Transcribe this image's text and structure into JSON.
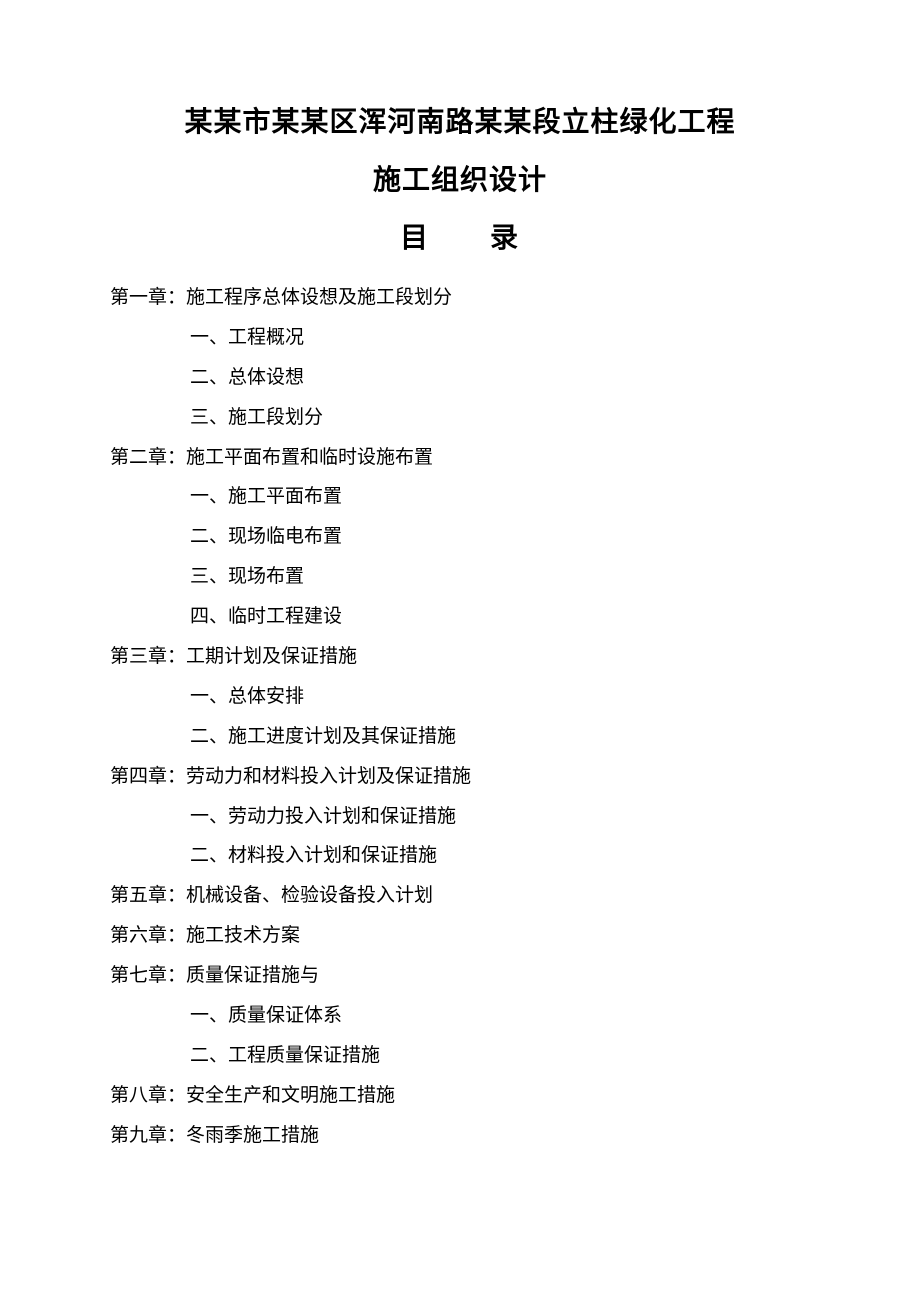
{
  "title_line_1": "某某市某某区浑河南路某某段立柱绿化工程",
  "title_line_2": "施工组织设计",
  "toc_heading": "目　　录",
  "chapters": {
    "ch1": {
      "title": "第一章：施工程序总体设想及施工段划分",
      "sub1": "一、工程概况",
      "sub2": "二、总体设想",
      "sub3": "三、施工段划分"
    },
    "ch2": {
      "title": "第二章：施工平面布置和临时设施布置",
      "sub1": "一、施工平面布置",
      "sub2": "二、现场临电布置",
      "sub3": "三、现场布置",
      "sub4": "四、临时工程建设"
    },
    "ch3": {
      "title": "第三章：工期计划及保证措施",
      "sub1": "一、总体安排",
      "sub2": "二、施工进度计划及其保证措施"
    },
    "ch4": {
      "title": "第四章：劳动力和材料投入计划及保证措施",
      "sub1": "一、劳动力投入计划和保证措施",
      "sub2": "二、材料投入计划和保证措施"
    },
    "ch5": {
      "title": "第五章：机械设备、检验设备投入计划"
    },
    "ch6": {
      "title": "第六章：施工技术方案"
    },
    "ch7": {
      "title": "第七章：质量保证措施与",
      "sub1": "一、质量保证体系",
      "sub2": "二、工程质量保证措施"
    },
    "ch8": {
      "title": "第八章：安全生产和文明施工措施"
    },
    "ch9": {
      "title": "第九章：冬雨季施工措施"
    }
  }
}
